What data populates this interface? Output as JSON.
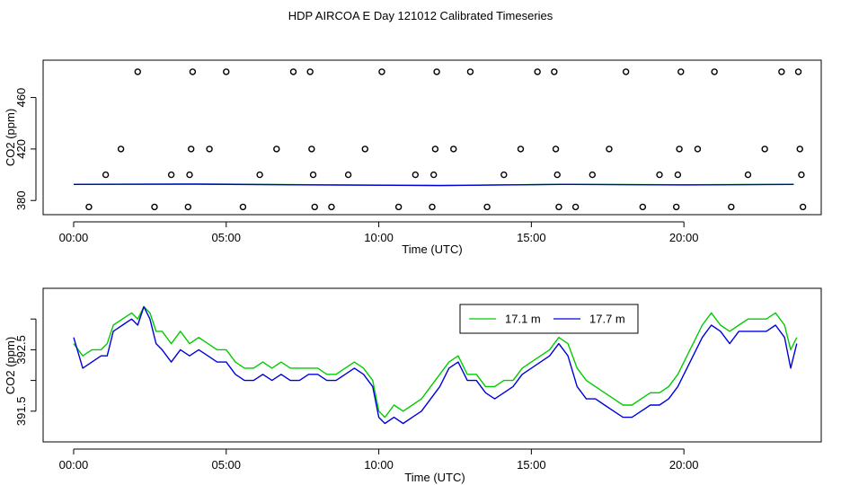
{
  "figure_title": "HDP AIRCOA E  Day 121012  Calibrated Timeseries",
  "colors": {
    "green": "#00cc00",
    "blue": "#0000dd",
    "axis": "#000000"
  },
  "chart_data": [
    {
      "type": "scatter",
      "xlabel": "Time (UTC)",
      "ylabel": "CO2 (ppm)",
      "xlim": [
        -1.0,
        24.5
      ],
      "ylim": [
        369,
        489
      ],
      "x_ticks": [
        0,
        5,
        10,
        15,
        20
      ],
      "x_tick_labels": [
        "00:00",
        "05:00",
        "10:00",
        "15:00",
        "20:00"
      ],
      "y_ticks": [
        380,
        420,
        460
      ],
      "y_tick_labels": [
        "380",
        "420",
        "460"
      ],
      "calibration_points": [
        {
          "x": 0.5,
          "y": 375
        },
        {
          "x": 1.05,
          "y": 400
        },
        {
          "x": 1.55,
          "y": 420
        },
        {
          "x": 2.1,
          "y": 480
        },
        {
          "x": 2.65,
          "y": 375
        },
        {
          "x": 3.2,
          "y": 400
        },
        {
          "x": 3.75,
          "y": 375
        },
        {
          "x": 3.8,
          "y": 400
        },
        {
          "x": 3.85,
          "y": 420
        },
        {
          "x": 3.9,
          "y": 480
        },
        {
          "x": 4.45,
          "y": 420
        },
        {
          "x": 5.0,
          "y": 480
        },
        {
          "x": 5.55,
          "y": 375
        },
        {
          "x": 6.1,
          "y": 400
        },
        {
          "x": 6.65,
          "y": 420
        },
        {
          "x": 7.2,
          "y": 480
        },
        {
          "x": 7.75,
          "y": 480
        },
        {
          "x": 7.8,
          "y": 420
        },
        {
          "x": 7.85,
          "y": 400
        },
        {
          "x": 7.9,
          "y": 375
        },
        {
          "x": 8.45,
          "y": 375
        },
        {
          "x": 9.0,
          "y": 400
        },
        {
          "x": 9.55,
          "y": 420
        },
        {
          "x": 10.1,
          "y": 480
        },
        {
          "x": 10.65,
          "y": 375
        },
        {
          "x": 11.2,
          "y": 400
        },
        {
          "x": 11.75,
          "y": 375
        },
        {
          "x": 11.8,
          "y": 400
        },
        {
          "x": 11.85,
          "y": 420
        },
        {
          "x": 11.9,
          "y": 480
        },
        {
          "x": 12.45,
          "y": 420
        },
        {
          "x": 13.0,
          "y": 480
        },
        {
          "x": 13.55,
          "y": 375
        },
        {
          "x": 14.1,
          "y": 400
        },
        {
          "x": 14.65,
          "y": 420
        },
        {
          "x": 15.2,
          "y": 480
        },
        {
          "x": 15.75,
          "y": 480
        },
        {
          "x": 15.8,
          "y": 420
        },
        {
          "x": 15.85,
          "y": 400
        },
        {
          "x": 15.9,
          "y": 375
        },
        {
          "x": 16.45,
          "y": 375
        },
        {
          "x": 17.0,
          "y": 400
        },
        {
          "x": 17.55,
          "y": 420
        },
        {
          "x": 18.1,
          "y": 480
        },
        {
          "x": 18.65,
          "y": 375
        },
        {
          "x": 19.2,
          "y": 400
        },
        {
          "x": 19.75,
          "y": 375
        },
        {
          "x": 19.8,
          "y": 400
        },
        {
          "x": 19.85,
          "y": 420
        },
        {
          "x": 19.9,
          "y": 480
        },
        {
          "x": 20.45,
          "y": 420
        },
        {
          "x": 21.0,
          "y": 480
        },
        {
          "x": 21.55,
          "y": 375
        },
        {
          "x": 22.1,
          "y": 400
        },
        {
          "x": 22.65,
          "y": 420
        },
        {
          "x": 23.2,
          "y": 480
        },
        {
          "x": 23.75,
          "y": 480
        },
        {
          "x": 23.8,
          "y": 420
        },
        {
          "x": 23.85,
          "y": 400
        },
        {
          "x": 23.9,
          "y": 375
        }
      ],
      "series": [
        {
          "name": "17.1 m",
          "color": "#00cc00",
          "x": [
            0,
            4,
            8,
            12,
            16,
            20,
            23.6
          ],
          "values": [
            392.6,
            392.8,
            392.2,
            391.7,
            392.6,
            392.2,
            392.6
          ]
        },
        {
          "name": "17.7 m",
          "color": "#0000dd",
          "x": [
            0,
            4,
            8,
            12,
            16,
            20,
            23.6
          ],
          "values": [
            392.5,
            392.7,
            392.1,
            391.6,
            392.5,
            392.1,
            392.5
          ]
        }
      ]
    },
    {
      "type": "line",
      "xlabel": "Time (UTC)",
      "ylabel": "CO2 (ppm)",
      "xlim": [
        -1.0,
        24.5
      ],
      "ylim": [
        391.0,
        393.5
      ],
      "x_ticks": [
        0,
        5,
        10,
        15,
        20
      ],
      "x_tick_labels": [
        "00:00",
        "05:00",
        "10:00",
        "15:00",
        "20:00"
      ],
      "y_ticks": [
        391.5,
        392.0,
        392.5,
        393.0
      ],
      "y_tick_labels": [
        "391.5",
        "",
        "392.5",
        ""
      ],
      "legend": {
        "position": "top-right",
        "labels": [
          "17.1 m",
          "17.7 m"
        ]
      },
      "series": [
        {
          "name": "17.1 m",
          "color": "#00cc00",
          "x": [
            0,
            0.3,
            0.6,
            0.9,
            1.1,
            1.3,
            1.6,
            1.9,
            2.1,
            2.3,
            2.5,
            2.7,
            2.9,
            3.2,
            3.5,
            3.8,
            4.1,
            4.4,
            4.7,
            5.0,
            5.3,
            5.6,
            5.9,
            6.2,
            6.5,
            6.8,
            7.1,
            7.4,
            7.7,
            8.0,
            8.3,
            8.6,
            8.9,
            9.2,
            9.5,
            9.8,
            10.0,
            10.2,
            10.5,
            10.8,
            11.1,
            11.4,
            11.7,
            12.0,
            12.3,
            12.6,
            12.9,
            13.2,
            13.5,
            13.8,
            14.1,
            14.4,
            14.7,
            15.0,
            15.3,
            15.6,
            15.9,
            16.2,
            16.5,
            16.8,
            17.1,
            17.4,
            17.7,
            18.0,
            18.3,
            18.6,
            18.9,
            19.2,
            19.5,
            19.8,
            20.1,
            20.3,
            20.6,
            20.9,
            21.2,
            21.5,
            21.8,
            22.1,
            22.4,
            22.7,
            23.0,
            23.3,
            23.5,
            23.7
          ],
          "values": [
            392.6,
            392.4,
            392.5,
            392.5,
            392.6,
            392.9,
            393.0,
            393.1,
            393.0,
            393.2,
            393.1,
            392.8,
            392.8,
            392.6,
            392.8,
            392.6,
            392.7,
            392.6,
            392.5,
            392.5,
            392.3,
            392.2,
            392.2,
            392.3,
            392.2,
            392.3,
            392.2,
            392.2,
            392.2,
            392.2,
            392.1,
            392.1,
            392.2,
            392.3,
            392.2,
            392.0,
            391.5,
            391.4,
            391.6,
            391.5,
            391.6,
            391.7,
            391.9,
            392.1,
            392.3,
            392.4,
            392.1,
            392.1,
            391.9,
            391.9,
            392.0,
            392.0,
            392.2,
            392.3,
            392.4,
            392.5,
            392.7,
            392.6,
            392.2,
            392.0,
            391.9,
            391.8,
            391.7,
            391.6,
            391.6,
            391.7,
            391.8,
            391.8,
            391.9,
            392.1,
            392.4,
            392.6,
            392.9,
            393.1,
            392.9,
            392.8,
            392.9,
            393.0,
            393.0,
            393.0,
            393.1,
            392.9,
            392.5,
            392.7
          ]
        },
        {
          "name": "17.7 m",
          "color": "#0000dd",
          "x": [
            0,
            0.3,
            0.6,
            0.9,
            1.1,
            1.3,
            1.6,
            1.9,
            2.1,
            2.3,
            2.5,
            2.7,
            2.9,
            3.2,
            3.5,
            3.8,
            4.1,
            4.4,
            4.7,
            5.0,
            5.3,
            5.6,
            5.9,
            6.2,
            6.5,
            6.8,
            7.1,
            7.4,
            7.7,
            8.0,
            8.3,
            8.6,
            8.9,
            9.2,
            9.5,
            9.8,
            10.0,
            10.2,
            10.5,
            10.8,
            11.1,
            11.4,
            11.7,
            12.0,
            12.3,
            12.6,
            12.9,
            13.2,
            13.5,
            13.8,
            14.1,
            14.4,
            14.7,
            15.0,
            15.3,
            15.6,
            15.9,
            16.2,
            16.5,
            16.8,
            17.1,
            17.4,
            17.7,
            18.0,
            18.3,
            18.6,
            18.9,
            19.2,
            19.5,
            19.8,
            20.1,
            20.3,
            20.6,
            20.9,
            21.2,
            21.5,
            21.8,
            22.1,
            22.4,
            22.7,
            23.0,
            23.3,
            23.5,
            23.7
          ],
          "values": [
            392.7,
            392.2,
            392.3,
            392.4,
            392.4,
            392.8,
            392.9,
            393.0,
            392.9,
            393.2,
            393.0,
            392.6,
            392.5,
            392.3,
            392.5,
            392.4,
            392.5,
            392.4,
            392.3,
            392.3,
            392.1,
            392.0,
            392.0,
            392.1,
            392.0,
            392.1,
            392.0,
            392.0,
            392.1,
            392.1,
            392.0,
            392.0,
            392.1,
            392.2,
            392.1,
            391.9,
            391.4,
            391.3,
            391.4,
            391.3,
            391.4,
            391.5,
            391.7,
            391.9,
            392.2,
            392.3,
            392.0,
            392.0,
            391.8,
            391.7,
            391.8,
            391.9,
            392.1,
            392.2,
            392.3,
            392.4,
            392.6,
            392.4,
            391.9,
            391.7,
            391.7,
            391.6,
            391.5,
            391.4,
            391.4,
            391.5,
            391.6,
            391.6,
            391.7,
            391.9,
            392.2,
            392.4,
            392.7,
            392.9,
            392.8,
            392.6,
            392.8,
            392.8,
            392.8,
            392.8,
            392.9,
            392.7,
            392.2,
            392.6
          ]
        }
      ]
    }
  ]
}
